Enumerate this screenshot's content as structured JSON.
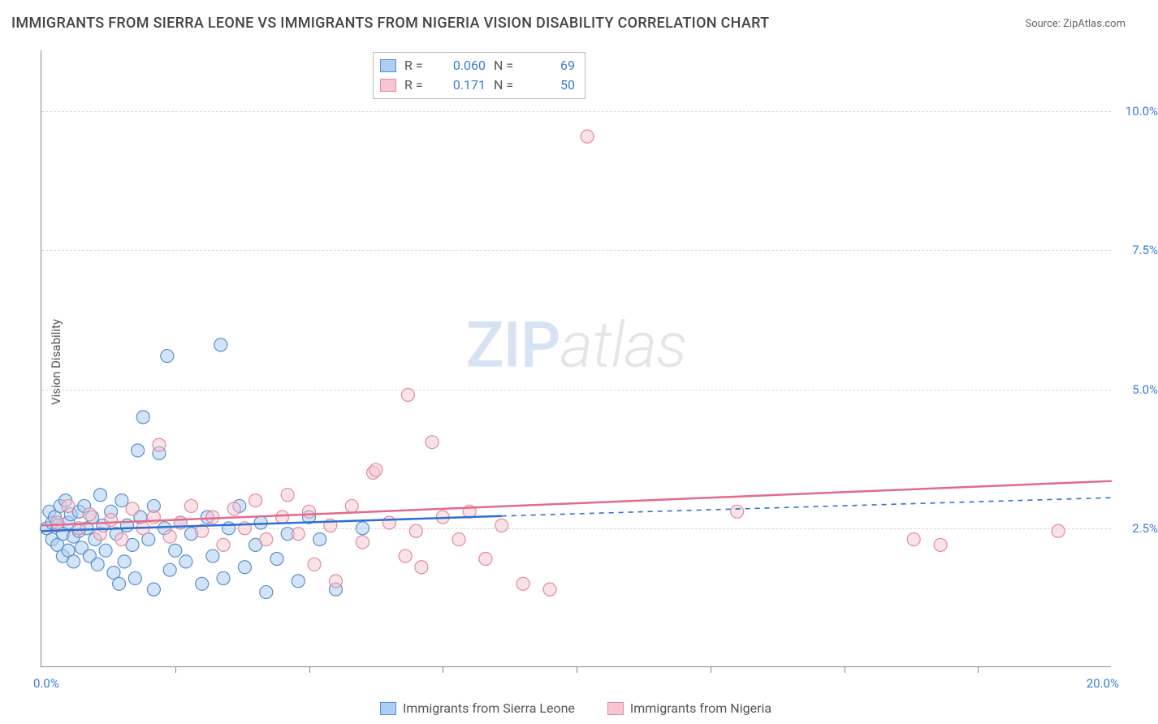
{
  "title": "IMMIGRANTS FROM SIERRA LEONE VS IMMIGRANTS FROM NIGERIA VISION DISABILITY CORRELATION CHART",
  "source": "Source: ZipAtlas.com",
  "y_axis_label": "Vision Disability",
  "watermark_a": "ZIP",
  "watermark_b": "atlas",
  "chart": {
    "type": "scatter",
    "background_color": "#ffffff",
    "grid_color": "#d8d8d8",
    "axis_color": "#888888",
    "xlim": [
      0,
      20
    ],
    "ylim": [
      0,
      11.1
    ],
    "xticks_minor": [
      2.5,
      5,
      7.5,
      10,
      12.5,
      15,
      17.5
    ],
    "xtick_labels": {
      "left": "0.0%",
      "right": "20.0%"
    },
    "ytick_positions": [
      2.5,
      5.0,
      7.5,
      10.0
    ],
    "ytick_labels": [
      "2.5%",
      "5.0%",
      "7.5%",
      "10.0%"
    ],
    "marker_radius": 8,
    "marker_stroke_width": 1.2,
    "trend_line_width": 2.5,
    "series": [
      {
        "name": "Immigrants from Sierra Leone",
        "fill": "#aecdf2",
        "stroke": "#5a8fce",
        "fill_opacity": 0.55,
        "trend_color": "#2e6fd6",
        "trend_start": [
          0,
          2.45
        ],
        "trend_solid_end": [
          8.6,
          2.72
        ],
        "trend_dash_end": [
          20,
          3.05
        ],
        "R_label": "R =",
        "R_value": "0.060",
        "N_label": "N =",
        "N_value": "69",
        "points": [
          [
            0.1,
            2.5
          ],
          [
            0.15,
            2.8
          ],
          [
            0.2,
            2.6
          ],
          [
            0.2,
            2.3
          ],
          [
            0.25,
            2.7
          ],
          [
            0.3,
            2.55
          ],
          [
            0.3,
            2.2
          ],
          [
            0.35,
            2.9
          ],
          [
            0.4,
            2.4
          ],
          [
            0.4,
            2.0
          ],
          [
            0.45,
            3.0
          ],
          [
            0.5,
            2.6
          ],
          [
            0.5,
            2.1
          ],
          [
            0.55,
            2.75
          ],
          [
            0.6,
            2.35
          ],
          [
            0.6,
            1.9
          ],
          [
            0.7,
            2.8
          ],
          [
            0.7,
            2.45
          ],
          [
            0.75,
            2.15
          ],
          [
            0.8,
            2.9
          ],
          [
            0.85,
            2.5
          ],
          [
            0.9,
            2.0
          ],
          [
            0.95,
            2.7
          ],
          [
            1.0,
            2.3
          ],
          [
            1.05,
            1.85
          ],
          [
            1.1,
            3.1
          ],
          [
            1.15,
            2.55
          ],
          [
            1.2,
            2.1
          ],
          [
            1.3,
            2.8
          ],
          [
            1.35,
            1.7
          ],
          [
            1.4,
            2.4
          ],
          [
            1.45,
            1.5
          ],
          [
            1.5,
            3.0
          ],
          [
            1.55,
            1.9
          ],
          [
            1.6,
            2.55
          ],
          [
            1.7,
            2.2
          ],
          [
            1.75,
            1.6
          ],
          [
            1.8,
            3.9
          ],
          [
            1.85,
            2.7
          ],
          [
            1.9,
            4.5
          ],
          [
            2.0,
            2.3
          ],
          [
            2.1,
            1.4
          ],
          [
            2.1,
            2.9
          ],
          [
            2.2,
            3.85
          ],
          [
            2.3,
            2.5
          ],
          [
            2.35,
            5.6
          ],
          [
            2.4,
            1.75
          ],
          [
            2.5,
            2.1
          ],
          [
            2.6,
            2.6
          ],
          [
            2.7,
            1.9
          ],
          [
            2.8,
            2.4
          ],
          [
            3.0,
            1.5
          ],
          [
            3.1,
            2.7
          ],
          [
            3.2,
            2.0
          ],
          [
            3.35,
            5.8
          ],
          [
            3.4,
            1.6
          ],
          [
            3.5,
            2.5
          ],
          [
            3.7,
            2.9
          ],
          [
            3.8,
            1.8
          ],
          [
            4.0,
            2.2
          ],
          [
            4.1,
            2.6
          ],
          [
            4.2,
            1.35
          ],
          [
            4.4,
            1.95
          ],
          [
            4.6,
            2.4
          ],
          [
            4.8,
            1.55
          ],
          [
            5.0,
            2.7
          ],
          [
            5.2,
            2.3
          ],
          [
            5.5,
            1.4
          ],
          [
            6.0,
            2.5
          ]
        ]
      },
      {
        "name": "Immigrants from Nigeria",
        "fill": "#f6c7d0",
        "stroke": "#e38aa0",
        "fill_opacity": 0.5,
        "trend_color": "#e26b8a",
        "trend_start": [
          0,
          2.55
        ],
        "trend_solid_end": [
          20,
          3.35
        ],
        "trend_dash_end": null,
        "R_label": "R =",
        "R_value": "0.171",
        "N_label": "N =",
        "N_value": "50",
        "points": [
          [
            0.3,
            2.6
          ],
          [
            0.5,
            2.9
          ],
          [
            0.7,
            2.5
          ],
          [
            0.9,
            2.75
          ],
          [
            1.1,
            2.4
          ],
          [
            1.3,
            2.65
          ],
          [
            1.5,
            2.3
          ],
          [
            1.7,
            2.85
          ],
          [
            1.9,
            2.5
          ],
          [
            2.1,
            2.7
          ],
          [
            2.2,
            4.0
          ],
          [
            2.4,
            2.35
          ],
          [
            2.6,
            2.6
          ],
          [
            2.8,
            2.9
          ],
          [
            3.0,
            2.45
          ],
          [
            3.2,
            2.7
          ],
          [
            3.4,
            2.2
          ],
          [
            3.6,
            2.85
          ],
          [
            3.8,
            2.5
          ],
          [
            4.0,
            3.0
          ],
          [
            4.2,
            2.3
          ],
          [
            4.5,
            2.7
          ],
          [
            4.6,
            3.1
          ],
          [
            4.8,
            2.4
          ],
          [
            5.0,
            2.8
          ],
          [
            5.1,
            1.85
          ],
          [
            5.4,
            2.55
          ],
          [
            5.5,
            1.55
          ],
          [
            5.8,
            2.9
          ],
          [
            6.0,
            2.25
          ],
          [
            6.2,
            3.5
          ],
          [
            6.25,
            3.55
          ],
          [
            6.5,
            2.6
          ],
          [
            6.8,
            2.0
          ],
          [
            6.85,
            4.9
          ],
          [
            7.0,
            2.45
          ],
          [
            7.1,
            1.8
          ],
          [
            7.3,
            4.05
          ],
          [
            7.5,
            2.7
          ],
          [
            7.8,
            2.3
          ],
          [
            8.0,
            2.8
          ],
          [
            8.3,
            1.95
          ],
          [
            8.6,
            2.55
          ],
          [
            9.0,
            1.5
          ],
          [
            9.5,
            1.4
          ],
          [
            10.2,
            9.55
          ],
          [
            13.0,
            2.8
          ],
          [
            16.3,
            2.3
          ],
          [
            16.8,
            2.2
          ],
          [
            19.0,
            2.45
          ]
        ]
      }
    ]
  },
  "legend_bottom": [
    {
      "swatch": "blue",
      "label": "Immigrants from Sierra Leone"
    },
    {
      "swatch": "pink",
      "label": "Immigrants from Nigeria"
    }
  ],
  "colors": {
    "title": "#444444",
    "source": "#666666",
    "tick_label": "#3a7bd5",
    "axis_label": "#555555"
  }
}
